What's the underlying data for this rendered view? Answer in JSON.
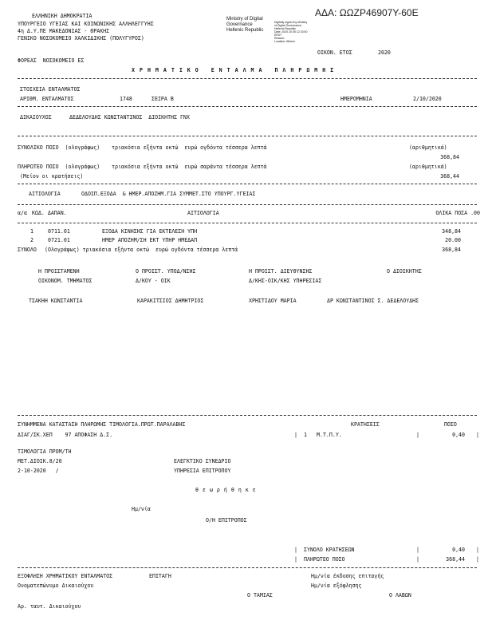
{
  "header": {
    "org_lines": [
      "ΕΛΛΗΝΙΚΗ ΔΗΜΟΚΡΑΤΙΑ",
      "ΥΠΟΥΡΓΕΙΟ ΥΓΕΙΑΣ ΚΑΙ ΚΟΙΝΩΝΙΚΗΣ ΑΛΛΗΛΕΓΓΥΗΣ",
      "4η Δ.Υ.ΠΕ ΜΑΚΕΔΟΝΙΑΣ - ΘΡΑΚΗΣ",
      "ΓΕΝΙΚΟ ΝΟΣΟΚΟΜΕΙΟ ΧΑΛΚΙΔΙΚΗΣ (ΠΟΛΥΓΥΡΟΣ)"
    ],
    "ministry_lines": [
      "Ministry of Digital",
      "Governance",
      "Hellenic Republic"
    ],
    "stamp_lines": [
      "Digitally signed by Ministry",
      "of Digital Governance,",
      "Hellenic Republic",
      "Date: 2020.10.05 12:23:00",
      "EEST",
      "Reason:",
      "Location: Athens"
    ],
    "ada": "ΑΔΑ: ΩΩΖΡ46907Υ-60Ε",
    "fiscal_year_label": "ΟΙΚΟΝ. ΕΤΟΣ",
    "fiscal_year": "2020",
    "agency": "ΦΟΡΕΑΣ  ΝΟΣΟΚΟΜΕΙΟ ΕΣ",
    "title": "ΧΡΗΜΑΤΙΚΟ ΕΝΤΑΛΜΑ ΠΛΗΡΩΜΗΣ"
  },
  "order": {
    "section_label": "ΣΤΟΙΧΕΙΑ ΕΝΤΑΛΜΑΤΟΣ",
    "number_label": "ΑΡΙΘΜ. ΕΝΤΑΛΜΑΤΟΣ",
    "number": "1748",
    "series": "ΣΕΙΡΑ Β",
    "date_label": "ΗΜΕΡΟΜΗΝΙΑ",
    "date": "2/10/2020",
    "beneficiary_label": "ΔΙΚΑΙΟΥΧΟΣ",
    "beneficiary": "ΔΕΔΕΛΟΥΔΗΣ ΚΩΝΣΤΑΝΤΙΝΟΣ  ΔΙΟΙΚΗΤΗΣ ΓΝΧ"
  },
  "amounts": {
    "total_label": "ΣΥΝΟΛΙΚΟ ΠΟΣΟ  (ολογράφως)",
    "total_words": "τριακόσια εξήντα οκτώ  ευρώ ογδόντα τέσσερα λεπτά",
    "numeric_label": "(αριθμητικά)",
    "total": "368,84",
    "payable_label": "ΠΛΗΡΩΤΕΟ ΠΟΣΟ  (ολογράφως)",
    "payable_words": "τριακόσια εξήντα οκτώ  ευρώ σαράντα τέσσερα λεπτά",
    "minus_label": "(Μείον οι κρατήσεις)",
    "payable": "368,44"
  },
  "reason": {
    "label": "ΑΙΤΙΟΛΟΓΙΑ",
    "text": "ΟΔΟΙΠ.ΕΞΟΔΑ  & ΗΜΕΡ.ΑΠΟΖΗΜ.ΓΙΑ ΣΥΜΜΕΤ.ΣΤΟ ΥΠΟΥΡΓ.ΥΓΕΙΑΣ"
  },
  "table": {
    "headers": [
      "α/α",
      "ΚΩΔ. ΔΑΠΑΝ.",
      "ΑΙΤΙΟΛΟΓΙΑ",
      "ΟΛΙΚΑ ΠΟΣΑ .00"
    ],
    "rows": [
      {
        "no": "1",
        "code": "0711.01",
        "desc": "ΕΞΟΔΑ ΚΙΝΗΣΗΣ ΓΙΑ ΕΚΤΕΛΕΣΗ ΥΠΗ",
        "amount": "348,84"
      },
      {
        "no": "2",
        "code": "0721.01",
        "desc": "ΗΜΕΡ ΑΠΟΖΗΜ/ΣΗ ΕΚΤ ΥΠΗΡ ΗΜΕΔΑΠ",
        "amount": "20.00"
      }
    ],
    "total_label": "ΣΥΝΟΛΟ",
    "total_words": "(Ολογράφως) τριακόσια εξήντα οκτώ  ευρώ ογδόντα τέσσερα λεπτά",
    "total": "368,84"
  },
  "signatures": [
    {
      "title": "Η ΠΡΟΙΣΤΑΜΕΝΗ",
      "dept": "ΟΙΚΟΝΟΜ. ΤΜΗΜΑΤΟΣ",
      "name": "ΤΣΑΚΗΗ ΚΩΝΣΤΑΝΤΙΑ"
    },
    {
      "title": "Ο ΠΡΟΙΣΤ. ΥΠΟΔ/ΝΣΗΣ",
      "dept": "Δ/ΚΟΥ - ΟΙΚ",
      "name": "ΚΑΡΑΚΙΤΣΙΟΣ ΔΗΜΗΤΡΙΟΣ"
    },
    {
      "title": "Η ΠΡΟΙΣΤ. ΔΙΕΥΘΥΝΣΗΣ",
      "dept": "Δ/ΚΗΣ-ΟΙΚ/ΚΗΣ ΥΠΗΡΕΣΙΑΣ",
      "name": "ΧΡΗΣΤΙΔΟΥ ΜΑΡΙΑ"
    },
    {
      "title": "Ο ΔΙΟΙΚΗΤΗΣ",
      "dept": "",
      "name": "ΔΡ ΚΩΝΣΤΑΝΤΙΝΟΣ Σ. ΔΕΔΕΛΟΥΔΗΣ"
    }
  ],
  "attachments": {
    "label": "ΣΥΝΗΜΜΕΝΑ ΚΑΤΑΣΤΑΣΗ ΠΛΗΡΩΜΗΣ ΤΙΜΟΛΟΓΙΑ.ΠΡΩΤ.ΠΑΡΑΛΑΒΗΣ",
    "line2": "ΔΙΑΓ/ΣΚ.ΧΕΠ    97 ΑΠΟΦΑΣΗ Δ.Σ.",
    "deductions_label": "ΚΡΑΤΗΣΕΙΣ",
    "amount_label": "ΠΟΣΟ",
    "deductions": [
      {
        "no": "1",
        "name": "Μ.Τ.Π.Υ.",
        "amount": "0,40"
      }
    ],
    "invoices_label": "ΤΙΜΟΛΟΓΙΑ ΠΡΟΜ/ΤΗ",
    "invoice_ref": "ΜΕΤ.ΔΙΟΙΚ.8/20",
    "invoice_date": "2-10-2020   /"
  },
  "audit": {
    "court": "ΕΛΕΓΚΤΙΚΟ ΣΥΝΕΔΡΙΟ",
    "service": "ΥΠΗΡΕΣΙΑ ΕΠΙΤΡΟΠΟΥ",
    "approved": "θεωρήθηκε",
    "date_label": "Ημ/νία",
    "commissioner": "Ο/Η ΕΠΙΤΡΟΠΟΣ"
  },
  "summary": {
    "deductions_total_label": "ΣΥΝΟΛΟ ΚΡΑΤΗΣΕΩΝ",
    "deductions_total": "0,40",
    "payable_label": "ΠΛΗΡΩΤΕΟ ΠΟΣΟ",
    "payable": "368,44"
  },
  "settlement": {
    "label": "ΕΞΟΦΛΗΣΗ ΧΡΗΜΑΤΙΚΟΥ ΕΝΤΑΛΜΑΤΟΣ",
    "cheque": "ΕΠΙΤΑΓΗ",
    "cheque_date": "Ημ/νία έκδοσης επιταγής",
    "beneficiary_name": "Ονοματεπώνυμο Δικαιούχου",
    "payment_date": "Ημ/νία εξόφλησης",
    "cashier": "Ο ΤΑΜΙΑΣ",
    "receiver": "Ο ΛΑΒΩΝ",
    "id_number": "Αρ. ταυτ. Δικαιούχου"
  }
}
